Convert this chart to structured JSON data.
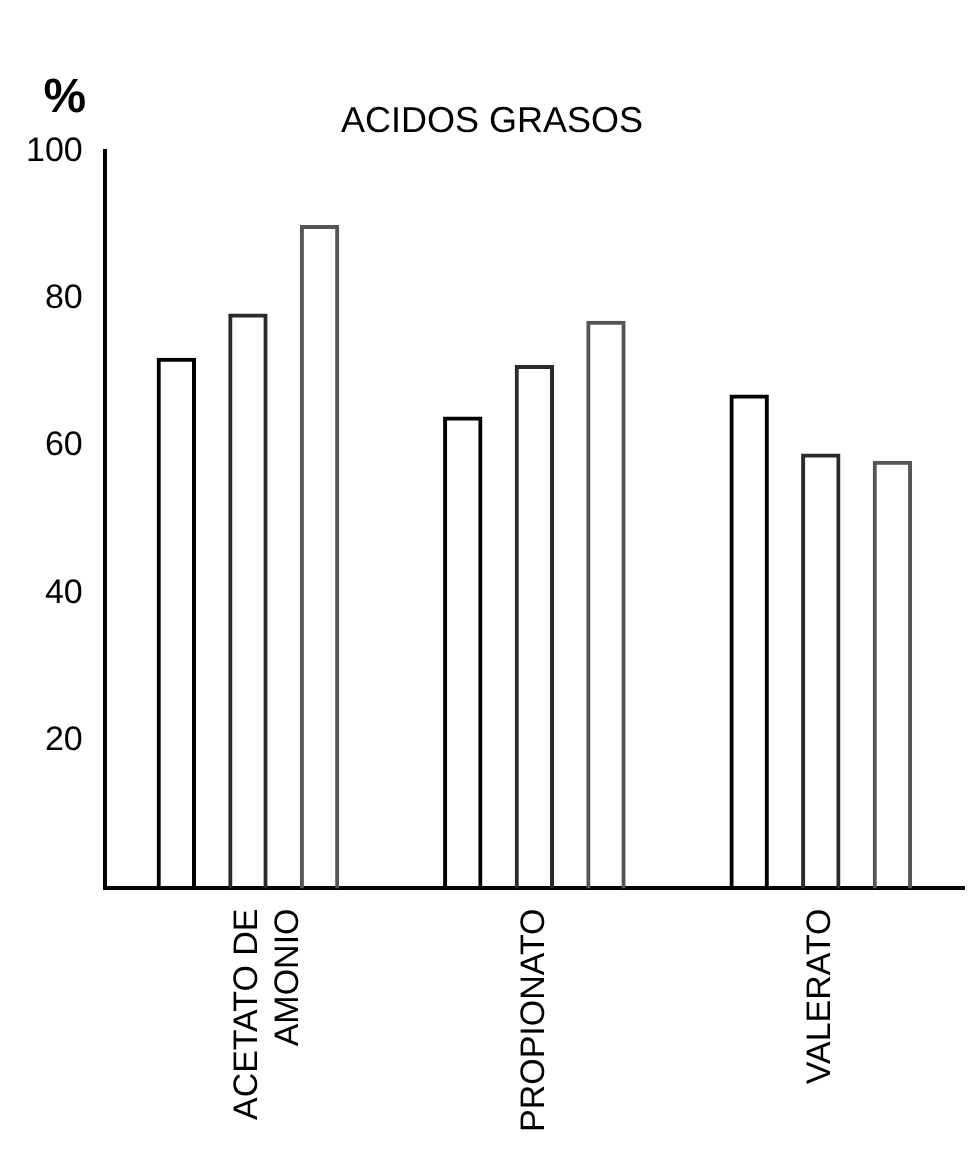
{
  "chart_data": {
    "type": "bar",
    "title": "ACIDOS GRASOS",
    "ylabel": "%",
    "categories": [
      "ACETATO DE\nAMONIO",
      "PROPIONATO",
      "VALERATO"
    ],
    "series": [
      {
        "color": "#000000",
        "values": [
          72,
          64,
          67
        ]
      },
      {
        "color": "#2a2a2a",
        "values": [
          78,
          71,
          59
        ]
      },
      {
        "color": "#555555",
        "values": [
          90,
          77,
          58
        ]
      }
    ],
    "ylim": [
      0,
      100
    ],
    "yticks": [
      20,
      40,
      60,
      80,
      100
    ],
    "grid": false,
    "legend": false
  }
}
